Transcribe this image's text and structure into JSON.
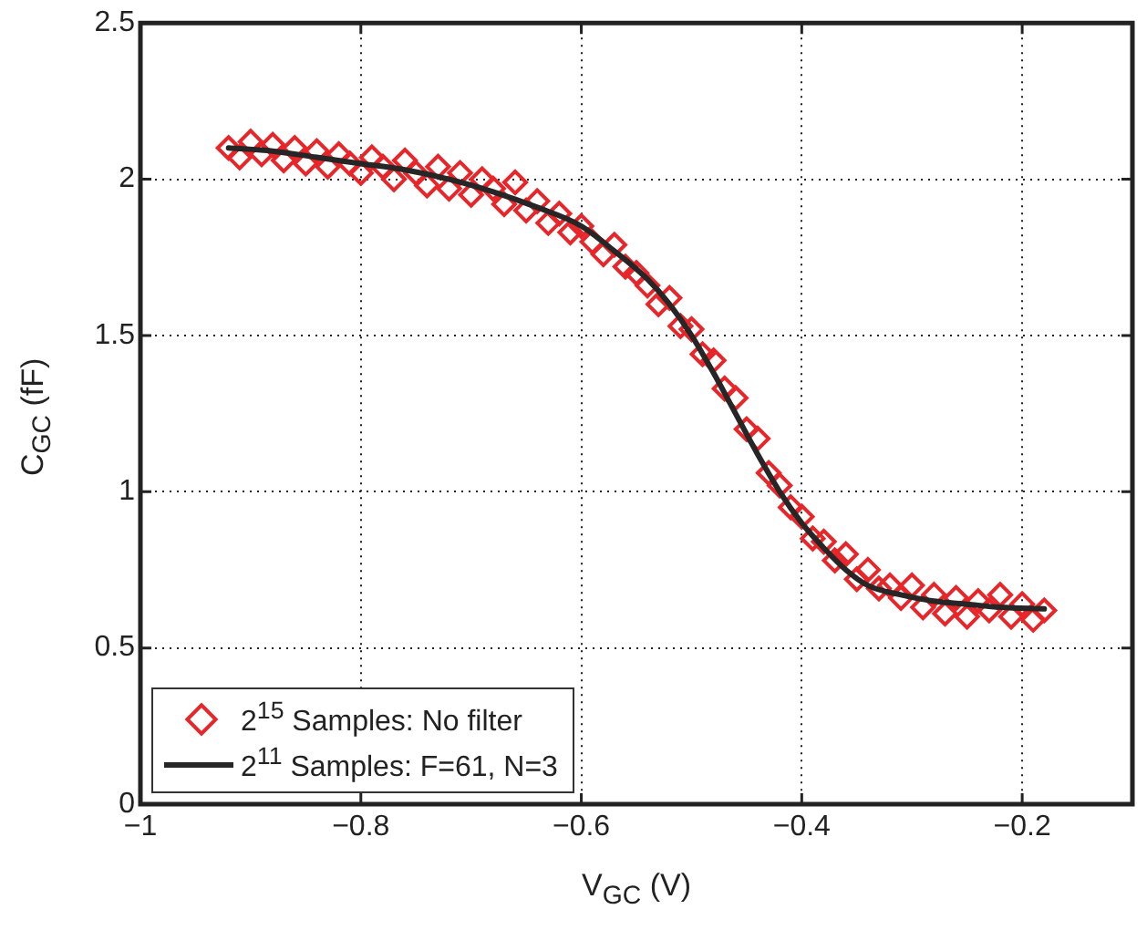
{
  "chart_data": {
    "type": "scatter",
    "xlabel": "V$_{GC}$ (V)",
    "ylabel": "C$_{GC}$ (fF)",
    "xlim": [
      -1,
      -0.1
    ],
    "xticks": [
      {
        "value": -1,
        "label": "−1"
      },
      {
        "value": -0.8,
        "label": "−0.8"
      },
      {
        "value": -0.6,
        "label": "−0.6"
      },
      {
        "value": -0.4,
        "label": "−0.4"
      },
      {
        "value": -0.2,
        "label": "−0.2"
      }
    ],
    "ylim": [
      0,
      2.5
    ],
    "yticks": [
      0,
      0.5,
      1,
      1.5,
      2,
      2.5
    ],
    "grid": true,
    "legend": "bottom left",
    "series": [
      {
        "name": "2$^{15}$ Samples: No filter",
        "marker": "diamond",
        "color": "#e8262a",
        "x": [
          -0.92,
          -0.91,
          -0.9,
          -0.89,
          -0.88,
          -0.87,
          -0.86,
          -0.85,
          -0.84,
          -0.83,
          -0.82,
          -0.81,
          -0.8,
          -0.79,
          -0.78,
          -0.77,
          -0.76,
          -0.75,
          -0.74,
          -0.73,
          -0.72,
          -0.71,
          -0.7,
          -0.69,
          -0.68,
          -0.67,
          -0.66,
          -0.65,
          -0.64,
          -0.63,
          -0.62,
          -0.61,
          -0.6,
          -0.59,
          -0.58,
          -0.57,
          -0.56,
          -0.55,
          -0.54,
          -0.53,
          -0.52,
          -0.51,
          -0.5,
          -0.49,
          -0.48,
          -0.47,
          -0.46,
          -0.45,
          -0.44,
          -0.43,
          -0.42,
          -0.41,
          -0.4,
          -0.39,
          -0.38,
          -0.37,
          -0.36,
          -0.35,
          -0.34,
          -0.33,
          -0.32,
          -0.31,
          -0.3,
          -0.29,
          -0.28,
          -0.27,
          -0.26,
          -0.25,
          -0.24,
          -0.23,
          -0.22,
          -0.21,
          -0.2,
          -0.19,
          -0.18
        ],
        "values": [
          2.1,
          2.07,
          2.12,
          2.08,
          2.11,
          2.06,
          2.1,
          2.05,
          2.09,
          2.04,
          2.08,
          2.05,
          2.02,
          2.07,
          2.04,
          2.0,
          2.06,
          2.02,
          1.98,
          2.04,
          1.97,
          2.02,
          1.95,
          2.0,
          1.97,
          1.92,
          1.99,
          1.9,
          1.93,
          1.86,
          1.89,
          1.83,
          1.85,
          1.8,
          1.76,
          1.79,
          1.72,
          1.7,
          1.66,
          1.6,
          1.62,
          1.53,
          1.52,
          1.44,
          1.42,
          1.33,
          1.3,
          1.2,
          1.17,
          1.06,
          1.02,
          0.95,
          0.92,
          0.85,
          0.84,
          0.78,
          0.8,
          0.72,
          0.75,
          0.69,
          0.7,
          0.66,
          0.7,
          0.63,
          0.67,
          0.61,
          0.66,
          0.6,
          0.65,
          0.62,
          0.67,
          0.6,
          0.64,
          0.59,
          0.62
        ]
      },
      {
        "name": "2$^{11}$ Samples: F=61, N=3",
        "type": "line",
        "marker": "none",
        "line_style": "solid",
        "color": "#262626",
        "x": [
          -0.92,
          -0.88,
          -0.84,
          -0.8,
          -0.76,
          -0.72,
          -0.68,
          -0.64,
          -0.6,
          -0.57,
          -0.54,
          -0.52,
          -0.5,
          -0.48,
          -0.46,
          -0.44,
          -0.42,
          -0.4,
          -0.38,
          -0.36,
          -0.34,
          -0.31,
          -0.28,
          -0.25,
          -0.22,
          -0.18
        ],
        "values": [
          2.1,
          2.09,
          2.07,
          2.05,
          2.03,
          2.0,
          1.96,
          1.91,
          1.85,
          1.77,
          1.68,
          1.6,
          1.5,
          1.38,
          1.25,
          1.12,
          1.0,
          0.9,
          0.82,
          0.75,
          0.7,
          0.67,
          0.65,
          0.64,
          0.63,
          0.625
        ]
      }
    ]
  }
}
